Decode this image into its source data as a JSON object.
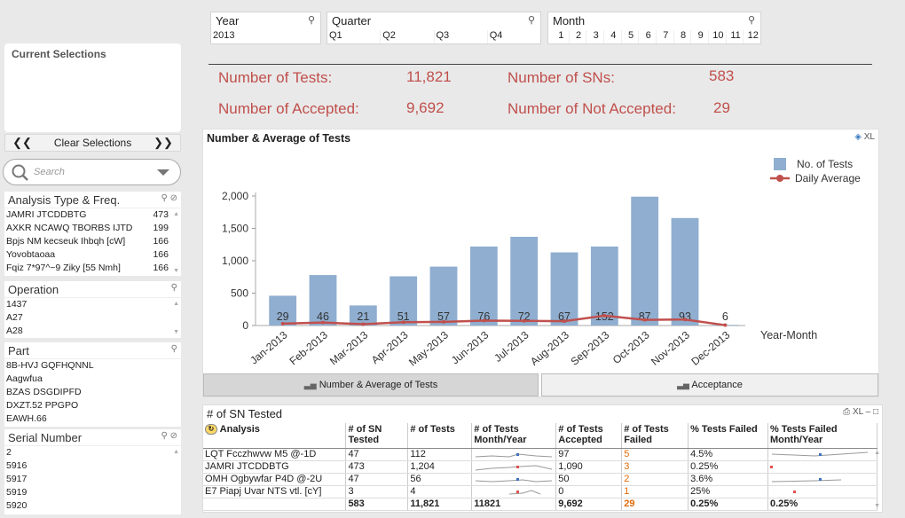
{
  "filters": {
    "year": {
      "title": "Year",
      "values": [
        "2013"
      ]
    },
    "quarter": {
      "title": "Quarter",
      "values": [
        "Q1",
        "Q2",
        "Q3",
        "Q4"
      ]
    },
    "month": {
      "title": "Month",
      "values": [
        "1",
        "2",
        "3",
        "4",
        "5",
        "6",
        "7",
        "8",
        "9",
        "10",
        "11",
        "12"
      ]
    }
  },
  "kpis": {
    "tests_label": "Number of Tests:",
    "tests_value": "11,821",
    "sns_label": "Number of SNs:",
    "sns_value": "583",
    "accepted_label": "Number of Accepted:",
    "accepted_value": "9,692",
    "not_accepted_label": "Number of Not Accepted:",
    "not_accepted_value": "29"
  },
  "left": {
    "current_selections": "Current Selections",
    "clear_selections": "Clear Selections",
    "search_placeholder": "Search",
    "analysis": {
      "title": "Analysis Type & Freq.",
      "items": [
        {
          "label": "JAMRI JTCDDBTG",
          "count": "473"
        },
        {
          "label": "AXKR NCAWQ TBORBS IJTD",
          "count": "199"
        },
        {
          "label": "Bpjs NM kecseuk  Ihbqh  [cW]",
          "count": "166"
        },
        {
          "label": "Yovobtaoaa",
          "count": "166"
        },
        {
          "label": "Fqiz 7*97^~9 Ziky [55 Nmh]",
          "count": "166"
        }
      ]
    },
    "operation": {
      "title": "Operation",
      "items": [
        "1437",
        "A27",
        "A28"
      ]
    },
    "part": {
      "title": "Part",
      "items": [
        "8B-HVJ GQFHQNNL",
        "Aagwfua",
        "BZAS DSGDIPFD",
        "DXZT.52 PPGPO",
        "EAWH.66"
      ]
    },
    "serial": {
      "title": "Serial Number",
      "items": [
        "2",
        "5916",
        "5917",
        "5919",
        "5920"
      ]
    }
  },
  "chart": {
    "title": "Number & Average of Tests",
    "xl_label": "XL",
    "tab_active": "Number & Average of Tests",
    "tab_other": "Acceptance"
  },
  "chart_data": {
    "type": "bar",
    "title": "Number & Average of Tests",
    "categories": [
      "Jan-2013",
      "Feb-2013",
      "Mar-2013",
      "Apr-2013",
      "May-2013",
      "Jun-2013",
      "Jul-2013",
      "Aug-2013",
      "Sep-2013",
      "Oct-2013",
      "Nov-2013",
      "Dec-2013"
    ],
    "series": [
      {
        "name": "No. of Tests",
        "type": "bar",
        "color": "#8faed0",
        "values": [
          460,
          780,
          310,
          760,
          910,
          1220,
          1370,
          1130,
          1220,
          1990,
          1660,
          10
        ]
      },
      {
        "name": "Daily Average",
        "type": "line",
        "color": "#c0504d",
        "values": [
          29,
          46,
          21,
          51,
          57,
          76,
          72,
          67,
          152,
          87,
          93,
          6
        ]
      }
    ],
    "data_labels": [
      "29",
      "46",
      "21",
      "51",
      "57",
      "76",
      "72",
      "67",
      "152",
      "87",
      "93",
      "6"
    ],
    "y_ticks": [
      "0",
      "500",
      "1,000",
      "1,500",
      "2,000"
    ],
    "xlabel": "Year-Month",
    "ylabel": "",
    "ylim": [
      0,
      2000
    ],
    "legend": "top-right"
  },
  "table": {
    "title": "# of SN Tested",
    "tools": "XL",
    "headers": [
      "Analysis",
      "# of SN Tested",
      "# of Tests",
      "# of Tests Month/Year",
      "# of Tests Accepted",
      "# of Tests Failed",
      "% Tests Failed",
      "% Tests Failed Month/Year"
    ],
    "rows": [
      {
        "analysis": "LQT Fcczhwvw M5 @-1D",
        "sn": "47",
        "tests": "112",
        "accepted": "97",
        "failed": "5",
        "pct": "4.5%"
      },
      {
        "analysis": "JAMRI JTCDDBTG",
        "sn": "473",
        "tests": "1,204",
        "accepted": "1,090",
        "failed": "3",
        "pct": "0.25%"
      },
      {
        "analysis": "OMH Ogbywfar P4D @-2U",
        "sn": "47",
        "tests": "56",
        "accepted": "50",
        "failed": "2",
        "pct": "3.6%"
      },
      {
        "analysis": "E7 Piapj Uvar NTS vtl. [cY]",
        "sn": "3",
        "tests": "4",
        "accepted": "0",
        "failed": "1",
        "pct": "25%"
      }
    ],
    "totals": {
      "sn": "583",
      "tests": "11,821",
      "month_year": "11821",
      "accepted": "9,692",
      "failed": "29",
      "pct": "0.25%",
      "pct_month": "0.25%"
    }
  }
}
